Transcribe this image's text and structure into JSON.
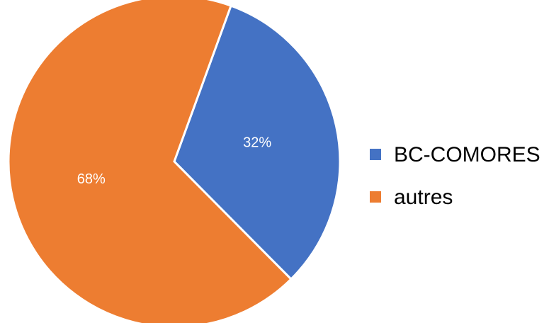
{
  "chart_data": {
    "type": "pie",
    "categories": [
      "BC-COMORES",
      "autres"
    ],
    "values": [
      32,
      68
    ],
    "value_labels": [
      "32%",
      "68%"
    ],
    "colors": [
      "#4472c4",
      "#ed7d31"
    ],
    "legend": "right"
  }
}
